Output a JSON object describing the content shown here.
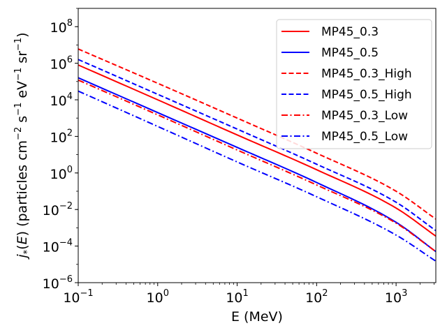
{
  "chart_data": {
    "type": "line",
    "x_scale": "log",
    "y_scale": "log",
    "xlabel": "E (MeV)",
    "ylabel": {
      "symbol": "j",
      "subscript": "*",
      "paren_open": "(",
      "var": "E",
      "paren_close": ")",
      "units_open": " (particles cm",
      "exp1": "−2",
      "s": " s",
      "exp2": "−1",
      "ev": " eV",
      "exp3": "−1",
      "sr": " sr",
      "exp4": "−1",
      "units_close": ")"
    },
    "xlim": [
      0.1,
      3162
    ],
    "ylim": [
      1e-06,
      1000000000.0
    ],
    "x_ticks": [
      {
        "value": 0.1,
        "base": "10",
        "exp": "−1"
      },
      {
        "value": 1,
        "base": "10",
        "exp": "0"
      },
      {
        "value": 10,
        "base": "10",
        "exp": "1"
      },
      {
        "value": 100,
        "base": "10",
        "exp": "2"
      },
      {
        "value": 1000,
        "base": "10",
        "exp": "3"
      }
    ],
    "y_ticks": [
      {
        "value": 1e-06,
        "base": "10",
        "exp": "−6"
      },
      {
        "value": 0.0001,
        "base": "10",
        "exp": "−4"
      },
      {
        "value": 0.01,
        "base": "10",
        "exp": "−2"
      },
      {
        "value": 1,
        "base": "10",
        "exp": "0"
      },
      {
        "value": 100,
        "base": "10",
        "exp": "2"
      },
      {
        "value": 10000,
        "base": "10",
        "exp": "4"
      },
      {
        "value": 1000000,
        "base": "10",
        "exp": "6"
      },
      {
        "value": 100000000,
        "base": "10",
        "exp": "8"
      }
    ],
    "legend_position": "top-right",
    "series": [
      {
        "name": "MP45_0.3",
        "color": "#ff0000",
        "style": "solid",
        "x": [
          0.1,
          1,
          10,
          100,
          1000,
          3162
        ],
        "y": [
          800000.0,
          10000.0,
          120.0,
          1.5,
          0.012,
          0.00035
        ]
      },
      {
        "name": "MP45_0.5",
        "color": "#0000ff",
        "style": "solid",
        "x": [
          0.1,
          1,
          10,
          100,
          1000,
          3162
        ],
        "y": [
          160000.0,
          2000.0,
          25.0,
          0.3,
          0.002,
          5e-05
        ]
      },
      {
        "name": "MP45_0.3_High",
        "color": "#ff0000",
        "style": "dashed",
        "x": [
          0.1,
          1,
          10,
          100,
          1000,
          3162
        ],
        "y": [
          6000000.0,
          80000.0,
          1000.0,
          12.0,
          0.1,
          0.003
        ]
      },
      {
        "name": "MP45_0.5_High",
        "color": "#0000ff",
        "style": "dashed",
        "x": [
          0.1,
          1,
          10,
          100,
          1000,
          3162
        ],
        "y": [
          1600000.0,
          20000.0,
          250.0,
          3.0,
          0.025,
          0.0007
        ]
      },
      {
        "name": "MP45_0.3_Low",
        "color": "#ff0000",
        "style": "dashdot",
        "x": [
          0.1,
          1,
          10,
          100,
          1000,
          3162
        ],
        "y": [
          120000.0,
          1500.0,
          18.0,
          0.22,
          0.0018,
          5e-05
        ]
      },
      {
        "name": "MP45_0.5_Low",
        "color": "#0000ff",
        "style": "dashdot",
        "x": [
          0.1,
          1,
          10,
          100,
          1000,
          3162
        ],
        "y": [
          30000.0,
          350.0,
          4.0,
          0.05,
          0.0004,
          1.5e-05
        ]
      }
    ]
  }
}
